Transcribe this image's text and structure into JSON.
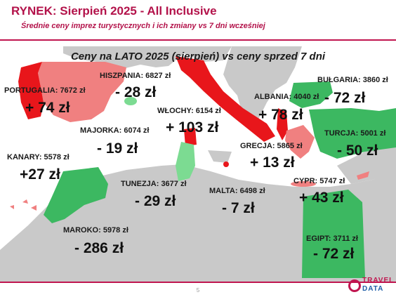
{
  "header": {
    "title": "RYNEK: Sierpień 2025 - All Inclusive",
    "subtitle": "Średnie ceny imprez turystycznych i ich zmiany vs 7 dni wcześniej"
  },
  "map": {
    "title": "Ceny na LATO 2025 (sierpień) vs ceny sprzed 7 dni",
    "colors": {
      "increase": "#e8161b",
      "decrease_strong": "#3cb861",
      "decrease_light": "#7cdb92",
      "increase_light": "#f08080",
      "land": "#c9c9c9",
      "sea": "#ffffff"
    },
    "destinations": [
      {
        "id": "portugalia",
        "label": "PORTUGALIA: 7672 zł",
        "change": "+ 74 zł"
      },
      {
        "id": "hiszpania",
        "label": "HISZPANIA: 6827 zł",
        "change": "- 28 zł"
      },
      {
        "id": "majorka",
        "label": "MAJORKA: 6074 zł",
        "change": "- 19 zł"
      },
      {
        "id": "kanary",
        "label": "KANARY: 5578 zł",
        "change": "+27 zł"
      },
      {
        "id": "wlochy",
        "label": "WŁOCHY: 6154 zł",
        "change": "+ 103 zł"
      },
      {
        "id": "albania",
        "label": "ALBANIA: 4040 zł",
        "change": "+ 78 zł"
      },
      {
        "id": "bulgaria",
        "label": "BUŁGARIA: 3860 zł",
        "change": "- 72 zł"
      },
      {
        "id": "turcja",
        "label": "TURCJA: 5001 zł",
        "change": "- 50 zł"
      },
      {
        "id": "grecja",
        "label": "GRECJA: 5865 zł",
        "change": "+ 13 zł"
      },
      {
        "id": "cypr",
        "label": "CYPR: 5747 zł",
        "change": "+ 43 zł"
      },
      {
        "id": "tunezja",
        "label": "TUNEZJA: 3677 zł",
        "change": "- 29 zł"
      },
      {
        "id": "malta",
        "label": "MALTA: 6498 zł",
        "change": "- 7 zł"
      },
      {
        "id": "maroko",
        "label": "MAROKO: 5978 zł",
        "change": "- 286 zł"
      },
      {
        "id": "egipt",
        "label": "EGIPT: 3711 zł",
        "change": "- 72 zł"
      }
    ]
  },
  "footer": {
    "page_number": "5",
    "logo_line1": "TRAVEL",
    "logo_line2": "DATA"
  }
}
